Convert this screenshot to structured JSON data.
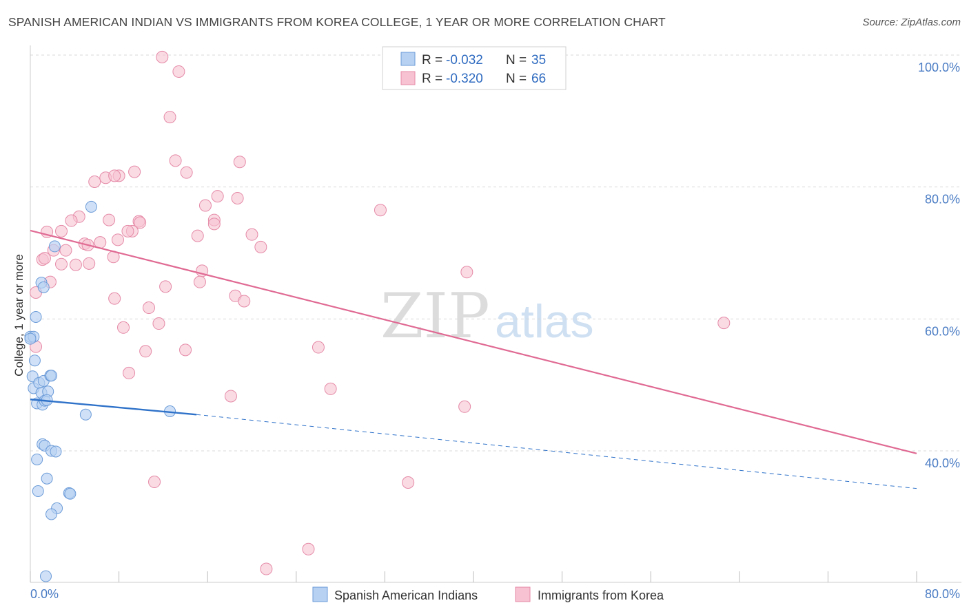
{
  "header": {
    "title": "SPANISH AMERICAN INDIAN VS IMMIGRANTS FROM KOREA COLLEGE, 1 YEAR OR MORE CORRELATION CHART",
    "source": "Source: ZipAtlas.com"
  },
  "watermark": {
    "zip": "ZIP",
    "atlas": "atlas"
  },
  "colors": {
    "blue_fill": "#b7d1f2",
    "blue_stroke": "#6b9bd8",
    "blue_line": "#2f72c9",
    "pink_fill": "#f7c3d2",
    "pink_stroke": "#e58aa7",
    "pink_line": "#e06a93",
    "tick_text": "#4a7cc4",
    "grid": "#d8d8d8"
  },
  "legend": {
    "rows": [
      {
        "r_label": "R = ",
        "r_value": "-0.032",
        "n_label": "N = ",
        "n_value": "35"
      },
      {
        "r_label": "R = ",
        "r_value": "-0.320",
        "n_label": "N = ",
        "n_value": "66"
      }
    ]
  },
  "bottom_legend": [
    "Spanish American Indians",
    "Immigrants from Korea"
  ],
  "chart_data": {
    "type": "scatter",
    "title": "SPANISH AMERICAN INDIAN VS IMMIGRANTS FROM KOREA COLLEGE, 1 YEAR OR MORE CORRELATION CHART",
    "xlabel": "",
    "ylabel": "College, 1 year or more",
    "xlim": [
      0,
      80
    ],
    "ylim": [
      22,
      102
    ],
    "x_tick_labels": [
      "0.0%",
      "80.0%"
    ],
    "y_ticks": [
      40,
      60,
      80,
      100
    ],
    "y_tick_labels": [
      "40.0%",
      "60.0%",
      "80.0%",
      "100.0%"
    ],
    "series": [
      {
        "name": "Spanish American Indians",
        "color": "blue",
        "r": -0.032,
        "n": 35,
        "trend": {
          "x0": 0,
          "y0": 47.8,
          "x1": 15,
          "y1": 45.5,
          "dashed_to_x": 80,
          "dashed_to_y": 34.3
        },
        "points": [
          [
            0.0,
            57.3
          ],
          [
            0.3,
            57.3
          ],
          [
            0.5,
            60.3
          ],
          [
            0.4,
            53.7
          ],
          [
            0.2,
            51.3
          ],
          [
            0.3,
            49.5
          ],
          [
            0.6,
            47.2
          ],
          [
            0.8,
            50.3
          ],
          [
            1.0,
            48.8
          ],
          [
            1.1,
            47.0
          ],
          [
            1.2,
            50.6
          ],
          [
            1.3,
            47.6
          ],
          [
            1.6,
            49.0
          ],
          [
            1.5,
            47.7
          ],
          [
            1.8,
            51.4
          ],
          [
            1.9,
            51.4
          ],
          [
            1.0,
            65.5
          ],
          [
            1.2,
            64.8
          ],
          [
            2.2,
            71.0
          ],
          [
            5.5,
            77.0
          ],
          [
            5.0,
            45.5
          ],
          [
            12.6,
            46.0
          ],
          [
            1.1,
            41.0
          ],
          [
            1.3,
            40.8
          ],
          [
            1.9,
            40.0
          ],
          [
            2.3,
            39.9
          ],
          [
            0.6,
            38.7
          ],
          [
            1.5,
            35.8
          ],
          [
            0.7,
            33.9
          ],
          [
            3.5,
            33.6
          ],
          [
            3.6,
            33.5
          ],
          [
            2.4,
            31.3
          ],
          [
            1.9,
            30.4
          ],
          [
            1.4,
            21.0
          ],
          [
            0.0,
            57.0
          ]
        ]
      },
      {
        "name": "Immigrants from Korea",
        "color": "pink",
        "r": -0.32,
        "n": 66,
        "trend": {
          "x0": 0,
          "y0": 73.4,
          "x1": 80,
          "y1": 39.6
        },
        "points": [
          [
            11.9,
            99.7
          ],
          [
            13.4,
            97.5
          ],
          [
            12.6,
            90.6
          ],
          [
            13.1,
            84.0
          ],
          [
            14.1,
            82.2
          ],
          [
            18.9,
            83.8
          ],
          [
            9.4,
            82.3
          ],
          [
            8.0,
            81.7
          ],
          [
            5.8,
            80.8
          ],
          [
            6.8,
            81.4
          ],
          [
            7.6,
            81.7
          ],
          [
            15.8,
            77.2
          ],
          [
            16.9,
            78.6
          ],
          [
            18.7,
            78.3
          ],
          [
            31.6,
            76.5
          ],
          [
            4.4,
            75.5
          ],
          [
            3.7,
            74.9
          ],
          [
            7.1,
            75.0
          ],
          [
            9.8,
            74.8
          ],
          [
            9.9,
            74.6
          ],
          [
            16.6,
            75.0
          ],
          [
            16.6,
            74.4
          ],
          [
            15.1,
            72.6
          ],
          [
            20.0,
            72.8
          ],
          [
            1.5,
            73.2
          ],
          [
            2.8,
            73.3
          ],
          [
            9.2,
            73.3
          ],
          [
            8.8,
            73.3
          ],
          [
            6.3,
            71.6
          ],
          [
            4.9,
            71.4
          ],
          [
            7.9,
            72.0
          ],
          [
            5.2,
            71.2
          ],
          [
            20.8,
            70.9
          ],
          [
            2.1,
            70.4
          ],
          [
            3.2,
            70.4
          ],
          [
            7.5,
            69.4
          ],
          [
            1.1,
            69.0
          ],
          [
            1.3,
            69.2
          ],
          [
            2.8,
            68.3
          ],
          [
            4.1,
            68.2
          ],
          [
            5.3,
            68.4
          ],
          [
            15.5,
            67.3
          ],
          [
            39.4,
            67.1
          ],
          [
            15.3,
            65.6
          ],
          [
            1.8,
            65.6
          ],
          [
            12.2,
            64.9
          ],
          [
            0.5,
            64.0
          ],
          [
            18.5,
            63.5
          ],
          [
            7.6,
            63.1
          ],
          [
            19.3,
            62.7
          ],
          [
            10.7,
            61.7
          ],
          [
            11.6,
            59.3
          ],
          [
            62.6,
            59.4
          ],
          [
            8.4,
            58.7
          ],
          [
            0.5,
            55.8
          ],
          [
            26.0,
            55.7
          ],
          [
            14.0,
            55.3
          ],
          [
            10.4,
            55.1
          ],
          [
            8.9,
            51.8
          ],
          [
            27.1,
            49.4
          ],
          [
            18.1,
            48.3
          ],
          [
            39.2,
            46.7
          ],
          [
            11.2,
            35.3
          ],
          [
            34.1,
            35.2
          ],
          [
            25.1,
            25.1
          ],
          [
            21.3,
            22.1
          ]
        ]
      }
    ]
  }
}
